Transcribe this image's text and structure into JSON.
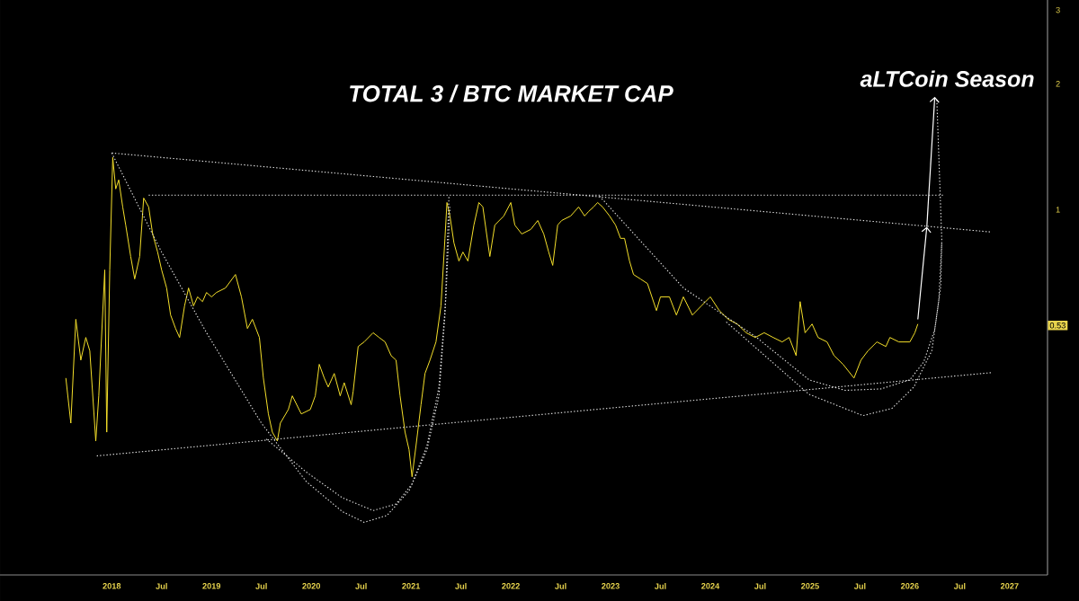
{
  "chart_data": {
    "type": "line",
    "title": "TOTAL 3 / BTC MARKET CAP",
    "log": "y",
    "xlim": [
      2016.88,
      2027.38
    ],
    "ylim": [
      0.134,
      3.17
    ],
    "xticks": [
      2018,
      {
        "value": 2018.5,
        "label": "Jul"
      },
      2019,
      {
        "value": 2019.5,
        "label": "Jul"
      },
      2020,
      {
        "value": 2020.5,
        "label": "Jul"
      },
      2021,
      {
        "value": 2021.5,
        "label": "Jul"
      },
      2022,
      {
        "value": 2022.5,
        "label": "Jul"
      },
      2023,
      {
        "value": 2023.5,
        "label": "Jul"
      },
      2024,
      {
        "value": 2024.5,
        "label": "Jul"
      },
      2025,
      {
        "value": 2025.5,
        "label": "Jul"
      },
      2026,
      {
        "value": 2026.5,
        "label": "Jul"
      },
      2027
    ],
    "yticks": [
      1,
      2,
      3
    ],
    "annotations": [
      {
        "text": "aLTCoin Season",
        "x": 2026.25,
        "y": 1.86
      },
      "0.53"
    ],
    "series": [
      {
        "type": "line",
        "color": "#f5e02a",
        "line_style": "solid",
        "x": [
          2017.54,
          2017.59,
          2017.64,
          2017.69,
          2017.74,
          2017.78,
          2017.84,
          2017.87,
          2017.93,
          2017.95,
          2017.98,
          2018.01,
          2018.04,
          2018.07,
          2018.11,
          2018.14,
          2018.19,
          2018.23,
          2018.28,
          2018.32,
          2018.37,
          2018.41,
          2018.46,
          2018.5,
          2018.55,
          2018.59,
          2018.64,
          2018.68,
          2018.73,
          2018.77,
          2018.82,
          2018.86,
          2018.91,
          2018.95,
          2019.0,
          2019.05,
          2019.14,
          2019.24,
          2019.3,
          2019.36,
          2019.41,
          2019.48,
          2019.52,
          2019.57,
          2019.61,
          2019.66,
          2019.69,
          2019.77,
          2019.81,
          2019.9,
          2019.99,
          2020.04,
          2020.08,
          2020.13,
          2020.17,
          2020.23,
          2020.29,
          2020.33,
          2020.4,
          2020.42,
          2020.47,
          2020.53,
          2020.62,
          2020.68,
          2020.74,
          2020.8,
          2020.85,
          2020.89,
          2020.94,
          2020.98,
          2021.01,
          2021.05,
          2021.1,
          2021.14,
          2021.19,
          2021.25,
          2021.3,
          2021.34,
          2021.36,
          2021.39,
          2021.43,
          2021.48,
          2021.52,
          2021.57,
          2021.63,
          2021.68,
          2021.72,
          2021.77,
          2021.79,
          2021.84,
          2021.93,
          2022.0,
          2022.04,
          2022.11,
          2022.2,
          2022.27,
          2022.33,
          2022.38,
          2022.42,
          2022.47,
          2022.51,
          2022.6,
          2022.68,
          2022.74,
          2022.78,
          2022.83,
          2022.87,
          2022.92,
          2022.99,
          2023.05,
          2023.1,
          2023.14,
          2023.19,
          2023.23,
          2023.3,
          2023.37,
          2023.46,
          2023.5,
          2023.59,
          2023.66,
          2023.73,
          2023.82,
          2023.91,
          2024.0,
          2024.09,
          2024.18,
          2024.27,
          2024.36,
          2024.45,
          2024.54,
          2024.63,
          2024.72,
          2024.79,
          2024.86,
          2024.9,
          2024.95,
          2025.02,
          2025.08,
          2025.17,
          2025.24,
          2025.33,
          2025.44,
          2025.51,
          2025.58,
          2025.67,
          2025.76,
          2025.8,
          2025.89,
          2026.0,
          2026.05,
          2026.08
        ],
        "values": [
          0.396,
          0.309,
          0.547,
          0.437,
          0.495,
          0.46,
          0.28,
          0.359,
          0.718,
          0.294,
          0.718,
          1.333,
          1.121,
          1.178,
          1.015,
          0.919,
          0.773,
          0.683,
          0.773,
          1.066,
          1.015,
          0.875,
          0.792,
          0.718,
          0.65,
          0.56,
          0.52,
          0.495,
          0.589,
          0.65,
          0.589,
          0.619,
          0.603,
          0.634,
          0.619,
          0.634,
          0.65,
          0.7,
          0.619,
          0.52,
          0.547,
          0.495,
          0.396,
          0.325,
          0.294,
          0.28,
          0.309,
          0.333,
          0.359,
          0.325,
          0.333,
          0.359,
          0.427,
          0.396,
          0.377,
          0.406,
          0.359,
          0.386,
          0.342,
          0.368,
          0.471,
          0.483,
          0.508,
          0.495,
          0.483,
          0.448,
          0.437,
          0.359,
          0.294,
          0.267,
          0.23,
          0.273,
          0.342,
          0.406,
          0.437,
          0.483,
          0.589,
          0.854,
          1.04,
          0.966,
          0.833,
          0.754,
          0.792,
          0.754,
          0.919,
          1.04,
          1.015,
          0.833,
          0.773,
          0.919,
          0.966,
          1.04,
          0.919,
          0.875,
          0.897,
          0.942,
          0.875,
          0.792,
          0.736,
          0.919,
          0.942,
          0.966,
          1.015,
          0.966,
          0.99,
          1.015,
          1.04,
          1.015,
          0.966,
          0.919,
          0.854,
          0.854,
          0.754,
          0.7,
          0.683,
          0.666,
          0.574,
          0.619,
          0.619,
          0.56,
          0.619,
          0.56,
          0.589,
          0.619,
          0.574,
          0.547,
          0.533,
          0.508,
          0.495,
          0.508,
          0.495,
          0.483,
          0.495,
          0.448,
          0.603,
          0.508,
          0.533,
          0.495,
          0.483,
          0.448,
          0.427,
          0.396,
          0.437,
          0.46,
          0.483,
          0.471,
          0.495,
          0.483,
          0.483,
          0.508,
          0.533
        ]
      },
      {
        "type": "line",
        "color": "#e6e6e6",
        "line_style": "dotted",
        "x": [
          2018.37,
          2026.34
        ],
        "values": [
          1.083,
          1.083
        ]
      },
      {
        "type": "line",
        "color": "#e6e6e6",
        "line_style": "dotted",
        "x": [
          2018.0,
          2026.82
        ],
        "values": [
          1.366,
          0.884
        ]
      },
      {
        "type": "line",
        "color": "#e6e6e6",
        "line_style": "dotted",
        "x": [
          2017.85,
          2026.82
        ],
        "values": [
          0.258,
          0.408
        ]
      },
      {
        "type": "line",
        "color": "#e6e6e6",
        "line_style": "dotted",
        "x": [
          2018.0,
          2018.5,
          2018.95,
          2019.5,
          2019.95,
          2020.31,
          2020.53,
          2020.76,
          2020.98,
          2021.16,
          2021.28,
          2021.34,
          2021.38
        ],
        "values": [
          1.366,
          0.792,
          0.508,
          0.309,
          0.224,
          0.19,
          0.179,
          0.186,
          0.213,
          0.267,
          0.359,
          0.56,
          1.077
        ]
      },
      {
        "type": "line",
        "color": "#e6e6e6",
        "line_style": "dotted",
        "x": [
          2019.55,
          2019.95,
          2020.31,
          2020.62,
          2020.85,
          2021.01,
          2021.16,
          2021.28,
          2021.35,
          2021.39
        ],
        "values": [
          0.283,
          0.236,
          0.205,
          0.191,
          0.198,
          0.221,
          0.273,
          0.377,
          0.619,
          1.015
        ]
      },
      {
        "type": "line",
        "color": "#e6e6e6",
        "line_style": "dotted",
        "x": [
          2022.89,
          2023.73,
          2024.45,
          2024.99,
          2025.35,
          2025.71,
          2026.0,
          2026.14,
          2026.25,
          2026.31,
          2026.32,
          2026.27
        ],
        "values": [
          1.077,
          0.65,
          0.498,
          0.392,
          0.37,
          0.373,
          0.392,
          0.433,
          0.518,
          0.657,
          0.849,
          1.838
        ]
      },
      {
        "type": "line",
        "color": "#e6e6e6",
        "line_style": "dotted",
        "x": [
          2024.16,
          2024.99,
          2025.53,
          2025.82,
          2026.04,
          2026.22,
          2026.29,
          2026.32
        ],
        "values": [
          0.539,
          0.362,
          0.322,
          0.335,
          0.377,
          0.46,
          0.606,
          0.833
        ]
      }
    ]
  }
}
